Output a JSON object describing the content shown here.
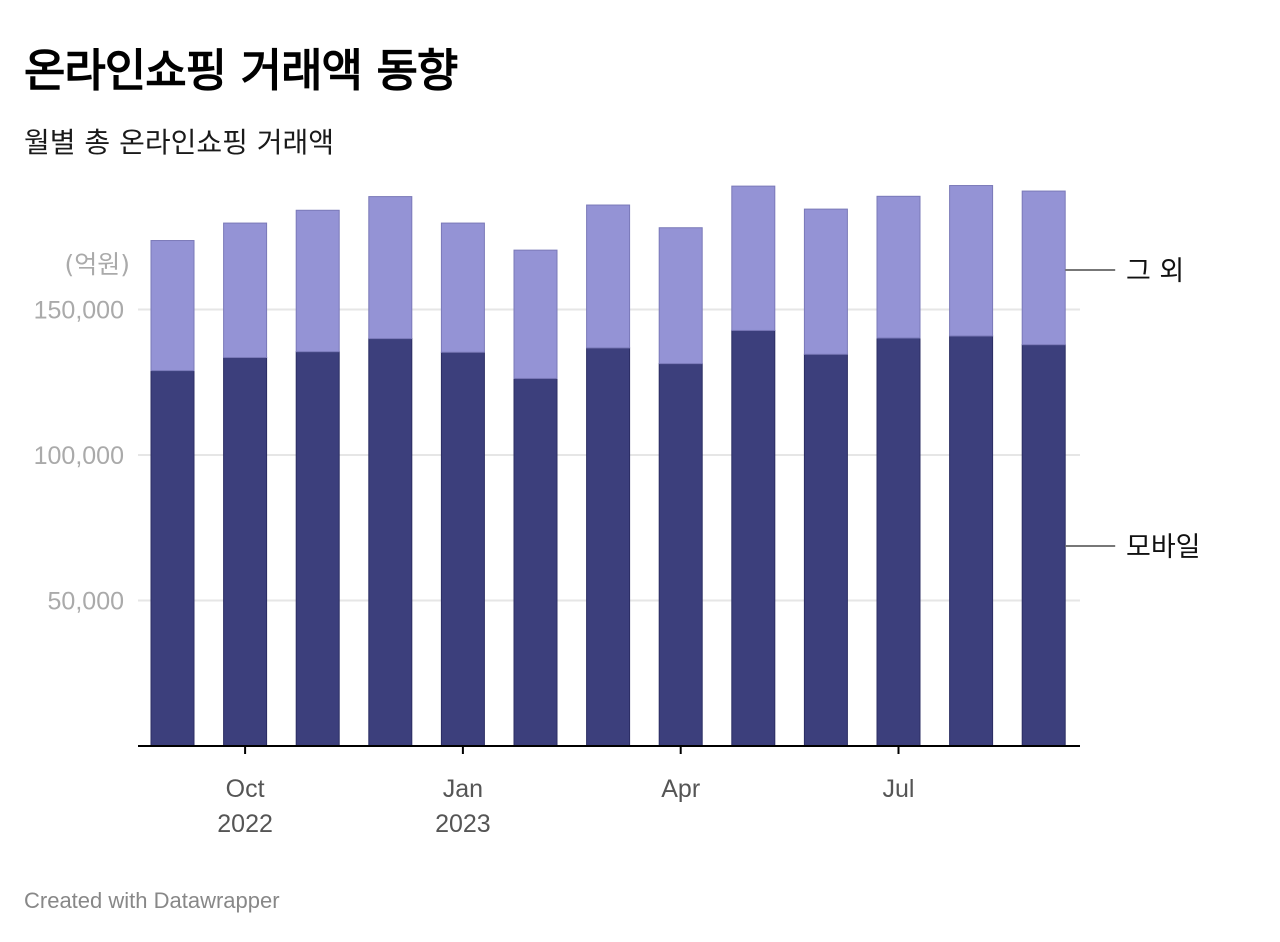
{
  "header": {
    "title": "온라인쇼핑 거래액 동향",
    "subtitle": "월별 총 온라인쇼핑 거래액"
  },
  "footer": {
    "credit": "Created with Datawrapper"
  },
  "colors": {
    "mobile": "#3c3f7c",
    "other": "#9493d5",
    "grid": "#e6e6e6",
    "axis": "#000000",
    "tick_text": "#aaaaaa",
    "x_text": "#555555"
  },
  "chart_data": {
    "type": "bar",
    "stacked": true,
    "unit_label": "(억원)",
    "categories": [
      "2022-09",
      "2022-10",
      "2022-11",
      "2022-12",
      "2023-01",
      "2023-02",
      "2023-03",
      "2023-04",
      "2023-05",
      "2023-06",
      "2023-07",
      "2023-08",
      "2023-09"
    ],
    "series": [
      {
        "name": "모바일",
        "values": [
          129000,
          133500,
          135500,
          140000,
          135300,
          126300,
          136800,
          131400,
          142800,
          134600,
          140200,
          140900,
          137900
        ]
      },
      {
        "name": "그 외",
        "values": [
          44700,
          46200,
          48600,
          48800,
          44400,
          44100,
          49100,
          46700,
          49600,
          49900,
          48700,
          51700,
          52800
        ]
      }
    ],
    "x_ticks": [
      {
        "index": 1,
        "month": "Oct",
        "year": "2022"
      },
      {
        "index": 4,
        "month": "Jan",
        "year": "2023"
      },
      {
        "index": 7,
        "month": "Apr",
        "year": ""
      },
      {
        "index": 10,
        "month": "Jul",
        "year": ""
      }
    ],
    "y_ticks": [
      {
        "value": 150000,
        "label": "150,000"
      },
      {
        "value": 100000,
        "label": "100,000"
      },
      {
        "value": 50000,
        "label": "50,000"
      }
    ],
    "ylim": [
      0,
      200000
    ],
    "grid": true,
    "legend": "direct-labels-right"
  }
}
